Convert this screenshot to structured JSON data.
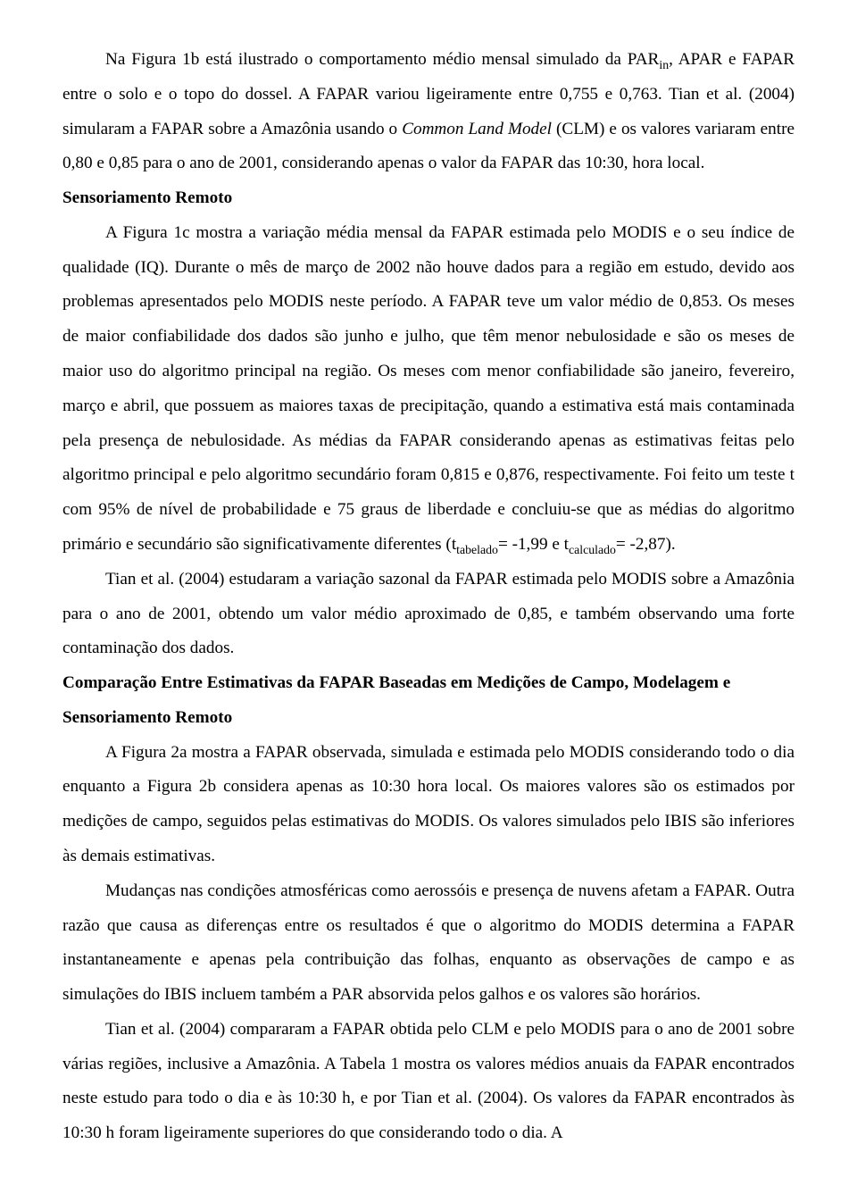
{
  "paragraphs": {
    "p1_a": "Na Figura 1b está ilustrado o comportamento médio mensal simulado da PAR",
    "p1_sub1": "in",
    "p1_b": ", APAR e FAPAR entre o solo e o topo do dossel. A FAPAR variou ligeiramente entre 0,755 e 0,763. Tian et al. (2004) simularam a FAPAR sobre a Amazônia usando o ",
    "p1_italic": "Common Land Model",
    "p1_c": " (CLM) e os valores variaram entre 0,80 e 0,85 para o ano de 2001, considerando apenas o valor da FAPAR das 10:30, hora local.",
    "h1": "Sensoriamento Remoto",
    "p2_a": "A Figura 1c mostra a variação média mensal da FAPAR estimada pelo MODIS e o seu índice de qualidade (IQ). Durante o mês de março de 2002 não houve dados para a região em estudo, devido aos problemas apresentados pelo MODIS neste período. A FAPAR teve um valor médio de 0,853. Os meses de maior confiabilidade dos dados são junho e julho, que têm menor nebulosidade e são os meses de maior uso do algoritmo principal na região. Os meses com menor confiabilidade são janeiro, fevereiro, março e abril, que possuem as maiores taxas de precipitação, quando a estimativa está mais contaminada pela presença de nebulosidade. As médias da FAPAR considerando apenas as estimativas feitas pelo algoritmo principal e pelo algoritmo secundário foram 0,815 e 0,876, respectivamente. Foi feito um teste t com 95% de nível de probabilidade e 75 graus de liberdade e concluiu-se que as médias do algoritmo primário e secundário são significativamente diferentes (t",
    "p2_sub1": "tabelado",
    "p2_b": "= -1,99 e t",
    "p2_sub2": "calculado",
    "p2_c": "= -2,87).",
    "p3": "Tian et al. (2004) estudaram a variação sazonal da FAPAR estimada pelo MODIS sobre a Amazônia para o ano de 2001, obtendo um valor médio aproximado de 0,85, e também observando uma forte contaminação dos dados.",
    "h2": "Comparação Entre Estimativas da FAPAR Baseadas em Medições de Campo, Modelagem e Sensoriamento Remoto",
    "p4": "A Figura 2a mostra a FAPAR observada, simulada e estimada pelo MODIS considerando todo o dia enquanto a Figura 2b considera apenas as 10:30 hora local. Os maiores valores são os estimados por medições de campo, seguidos pelas estimativas do MODIS. Os valores simulados pelo IBIS são inferiores às demais estimativas.",
    "p5": "Mudanças nas condições atmosféricas como aerossóis e presença de nuvens afetam a FAPAR. Outra razão que causa as diferenças entre os resultados é que o algoritmo do MODIS determina a FAPAR instantaneamente e apenas pela contribuição das folhas, enquanto as observações de campo e as simulações do IBIS incluem também a PAR absorvida pelos galhos e os valores são horários.",
    "p6": "Tian et al. (2004) compararam a FAPAR obtida pelo CLM e pelo MODIS para o ano de 2001 sobre várias regiões, inclusive a Amazônia. A Tabela 1 mostra os valores médios anuais da FAPAR encontrados neste estudo para todo o dia e às 10:30 h, e por Tian et al. (2004). Os valores da FAPAR encontrados às 10:30 h foram ligeiramente superiores do que considerando todo o dia. A"
  }
}
